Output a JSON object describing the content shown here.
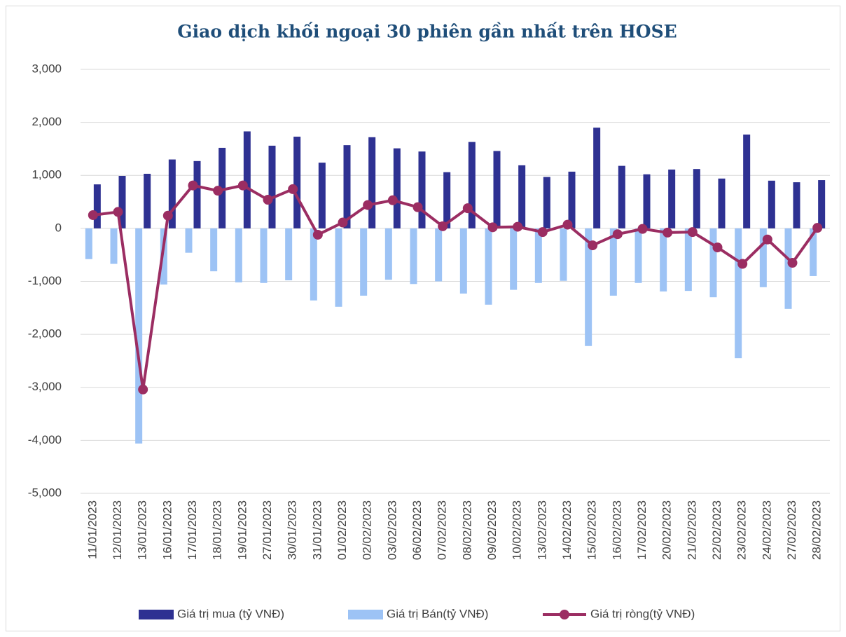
{
  "chart_data": {
    "type": "bar_line",
    "title": "Giao dịch khối ngoại 30 phiên gần nhất trên HOSE",
    "categories": [
      "11/01/2023",
      "12/01/2023",
      "13/01/2023",
      "16/01/2023",
      "17/01/2023",
      "18/01/2023",
      "19/01/2023",
      "27/01/2023",
      "30/01/2023",
      "31/01/2023",
      "01/02/2023",
      "02/02/2023",
      "03/02/2023",
      "06/02/2023",
      "07/02/2023",
      "08/02/2023",
      "09/02/2023",
      "10/02/2023",
      "13/02/2023",
      "14/02/2023",
      "15/02/2023",
      "16/02/2023",
      "17/02/2023",
      "20/02/2023",
      "21/02/2023",
      "22/02/2023",
      "23/02/2023",
      "24/02/2023",
      "27/02/2023",
      "28/02/2023"
    ],
    "series": [
      {
        "name": "Giá trị mua (tỷ VNĐ)",
        "type": "bar",
        "color": "#2e3192",
        "values": [
          830,
          990,
          1030,
          1300,
          1270,
          1520,
          1830,
          1560,
          1730,
          1240,
          1570,
          1720,
          1510,
          1450,
          1060,
          1630,
          1460,
          1190,
          970,
          1070,
          1900,
          1180,
          1020,
          1110,
          1120,
          940,
          1770,
          900,
          870,
          910
        ]
      },
      {
        "name": "Giá trị Bán(tỷ VNĐ)",
        "type": "bar",
        "color": "#9dc3f5",
        "values": [
          -580,
          -670,
          -4060,
          -1060,
          -460,
          -810,
          -1020,
          -1030,
          -980,
          -1360,
          -1480,
          -1270,
          -970,
          -1050,
          -1000,
          -1230,
          -1440,
          -1160,
          -1030,
          -990,
          -2220,
          -1270,
          -1030,
          -1190,
          -1180,
          -1300,
          -2450,
          -1110,
          -1520,
          -900
        ]
      },
      {
        "name": "Giá trị ròng(tỷ VNĐ)",
        "type": "line",
        "color": "#9b2d62",
        "values": [
          250,
          310,
          -3040,
          240,
          810,
          710,
          810,
          540,
          740,
          -120,
          110,
          440,
          530,
          400,
          40,
          380,
          20,
          30,
          -70,
          70,
          -320,
          -110,
          -10,
          -80,
          -70,
          -360,
          -670,
          -210,
          -650,
          10
        ]
      }
    ],
    "ylim": [
      -5000,
      3000
    ],
    "yticks": [
      {
        "value": -5000,
        "label": "-5,000"
      },
      {
        "value": -4000,
        "label": "-4,000"
      },
      {
        "value": -3000,
        "label": "-3,000"
      },
      {
        "value": -2000,
        "label": "-2,000"
      },
      {
        "value": -1000,
        "label": "-1,000"
      },
      0,
      {
        "value": 1000,
        "label": "1,000"
      },
      {
        "value": 2000,
        "label": "2,000"
      },
      {
        "value": 3000,
        "label": "3,000"
      }
    ],
    "grid": true
  }
}
